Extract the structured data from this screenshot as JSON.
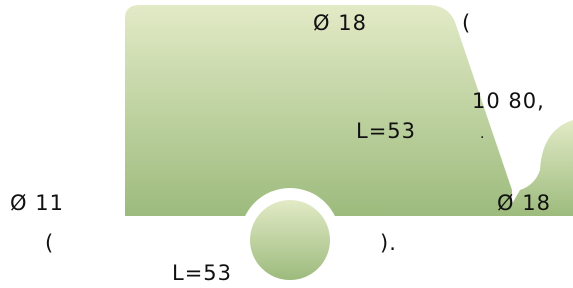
{
  "labels": [
    "Ø 18",
    "(",
    "10 80,",
    "L=53",
    ".",
    "Ø 11",
    "Ø 18",
    "(",
    ").",
    "L=53"
  ]
}
